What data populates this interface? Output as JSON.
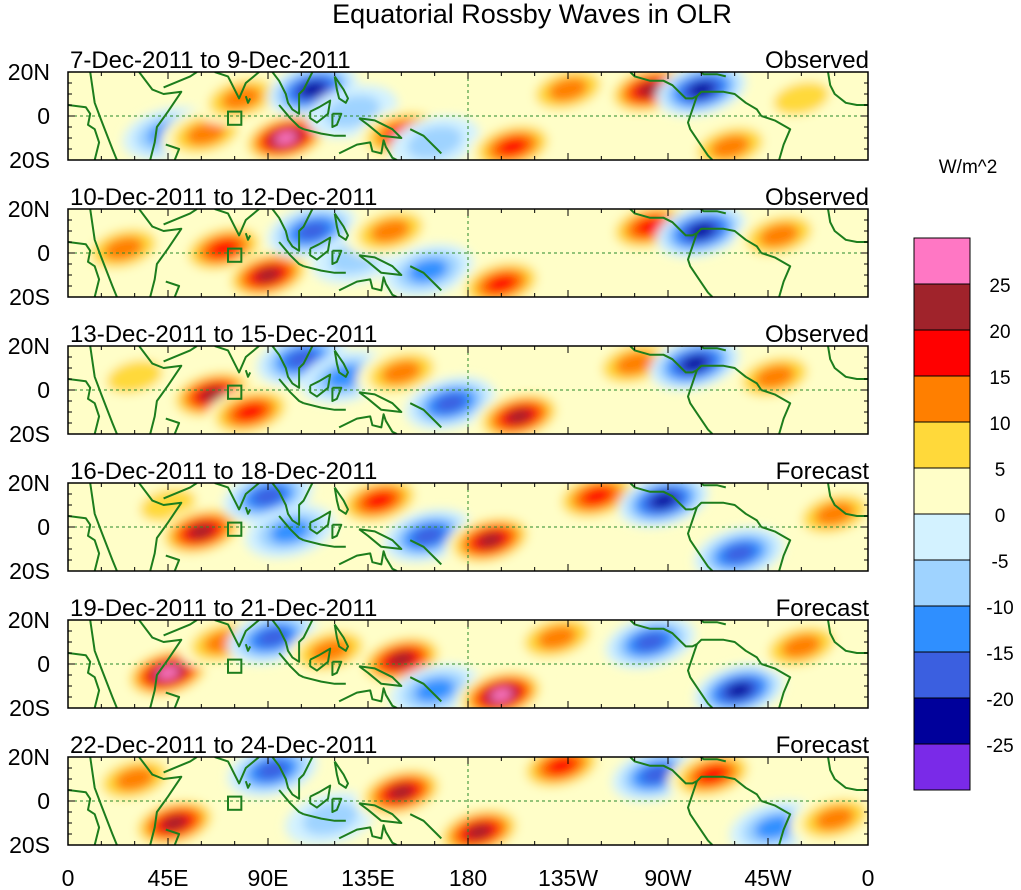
{
  "chart_data": {
    "type": "heatmap",
    "title": "Equatorial Rossby Waves in OLR",
    "units_label": "W/m^2",
    "colorbar": {
      "levels": [
        "25",
        "20",
        "15",
        "10",
        "5",
        "0",
        "-5",
        "-10",
        "-15",
        "-20",
        "-25"
      ],
      "colors": [
        "#ff77c4",
        "#a0232b",
        "#ff0000",
        "#ff7f00",
        "#ffd93a",
        "#fffec8",
        "#d3f2ff",
        "#9fd3ff",
        "#2f8fff",
        "#3b5fe0",
        "#00009b",
        "#7a2ae8"
      ]
    },
    "x_tick_labels": [
      "0",
      "45E",
      "90E",
      "135E",
      "180",
      "135W",
      "90W",
      "45W",
      "0"
    ],
    "x_ticks_deg": [
      0,
      45,
      90,
      135,
      180,
      225,
      270,
      315,
      360
    ],
    "y_tick_labels": [
      "20N",
      "0",
      "20S"
    ],
    "y_ticks_deg": [
      20,
      0,
      -20
    ],
    "panels": [
      {
        "period": "7-Dec-2011 to 9-Dec-2011",
        "status": "Observed",
        "anomalies": [
          {
            "lon": 45,
            "lat": -8,
            "value": -15
          },
          {
            "lon": 62,
            "lat": -8,
            "value": 10
          },
          {
            "lon": 78,
            "lat": 8,
            "value": 10
          },
          {
            "lon": 98,
            "lat": -10,
            "value": 25
          },
          {
            "lon": 110,
            "lat": 12,
            "value": -25
          },
          {
            "lon": 128,
            "lat": 2,
            "value": -10
          },
          {
            "lon": 150,
            "lat": -8,
            "value": 15
          },
          {
            "lon": 165,
            "lat": -12,
            "value": -10
          },
          {
            "lon": 200,
            "lat": -14,
            "value": 15
          },
          {
            "lon": 225,
            "lat": 12,
            "value": 10
          },
          {
            "lon": 262,
            "lat": 12,
            "value": 20
          },
          {
            "lon": 285,
            "lat": 12,
            "value": -25
          },
          {
            "lon": 298,
            "lat": -14,
            "value": 10
          },
          {
            "lon": 330,
            "lat": 8,
            "value": 5
          }
        ]
      },
      {
        "period": "10-Dec-2011 to 12-Dec-2011",
        "status": "Observed",
        "anomalies": [
          {
            "lon": 25,
            "lat": 2,
            "value": 10
          },
          {
            "lon": 70,
            "lat": 2,
            "value": 15
          },
          {
            "lon": 90,
            "lat": -10,
            "value": 20
          },
          {
            "lon": 110,
            "lat": 10,
            "value": -20
          },
          {
            "lon": 130,
            "lat": -2,
            "value": -10
          },
          {
            "lon": 145,
            "lat": 10,
            "value": 10
          },
          {
            "lon": 162,
            "lat": -8,
            "value": -15
          },
          {
            "lon": 195,
            "lat": -14,
            "value": 15
          },
          {
            "lon": 262,
            "lat": 12,
            "value": 15
          },
          {
            "lon": 285,
            "lat": 10,
            "value": -25
          },
          {
            "lon": 320,
            "lat": 8,
            "value": 10
          }
        ]
      },
      {
        "period": "13-Dec-2011 to 15-Dec-2011",
        "status": "Observed",
        "anomalies": [
          {
            "lon": 30,
            "lat": 6,
            "value": 5
          },
          {
            "lon": 65,
            "lat": -2,
            "value": 20
          },
          {
            "lon": 82,
            "lat": -10,
            "value": 15
          },
          {
            "lon": 105,
            "lat": 14,
            "value": -20
          },
          {
            "lon": 125,
            "lat": 6,
            "value": -15
          },
          {
            "lon": 150,
            "lat": 8,
            "value": 10
          },
          {
            "lon": 172,
            "lat": -6,
            "value": -20
          },
          {
            "lon": 203,
            "lat": -12,
            "value": 20
          },
          {
            "lon": 255,
            "lat": 12,
            "value": 10
          },
          {
            "lon": 282,
            "lat": 12,
            "value": -25
          },
          {
            "lon": 318,
            "lat": 6,
            "value": 10
          }
        ]
      },
      {
        "period": "16-Dec-2011 to 18-Dec-2011",
        "status": "Forecast",
        "anomalies": [
          {
            "lon": 45,
            "lat": 10,
            "value": 5
          },
          {
            "lon": 60,
            "lat": -2,
            "value": 20
          },
          {
            "lon": 90,
            "lat": 14,
            "value": -20
          },
          {
            "lon": 100,
            "lat": -2,
            "value": -15
          },
          {
            "lon": 140,
            "lat": 12,
            "value": 15
          },
          {
            "lon": 162,
            "lat": -4,
            "value": -20
          },
          {
            "lon": 190,
            "lat": -6,
            "value": 20
          },
          {
            "lon": 238,
            "lat": 14,
            "value": 15
          },
          {
            "lon": 268,
            "lat": 12,
            "value": -25
          },
          {
            "lon": 302,
            "lat": -12,
            "value": -20
          },
          {
            "lon": 345,
            "lat": 6,
            "value": 10
          }
        ]
      },
      {
        "period": "19-Dec-2011 to 21-Dec-2011",
        "status": "Forecast",
        "anomalies": [
          {
            "lon": 45,
            "lat": -4,
            "value": 25
          },
          {
            "lon": 70,
            "lat": 10,
            "value": 10
          },
          {
            "lon": 92,
            "lat": 12,
            "value": -20
          },
          {
            "lon": 118,
            "lat": 6,
            "value": 10
          },
          {
            "lon": 150,
            "lat": 2,
            "value": 20
          },
          {
            "lon": 165,
            "lat": -12,
            "value": -15
          },
          {
            "lon": 195,
            "lat": -14,
            "value": 25
          },
          {
            "lon": 220,
            "lat": 12,
            "value": 10
          },
          {
            "lon": 262,
            "lat": 10,
            "value": -20
          },
          {
            "lon": 302,
            "lat": -12,
            "value": -25
          },
          {
            "lon": 330,
            "lat": 8,
            "value": 10
          }
        ]
      },
      {
        "period": "22-Dec-2011 to 24-Dec-2011",
        "status": "Forecast",
        "anomalies": [
          {
            "lon": 30,
            "lat": 10,
            "value": 10
          },
          {
            "lon": 48,
            "lat": -10,
            "value": 20
          },
          {
            "lon": 92,
            "lat": 14,
            "value": -20
          },
          {
            "lon": 118,
            "lat": -8,
            "value": -10
          },
          {
            "lon": 150,
            "lat": 4,
            "value": 20
          },
          {
            "lon": 185,
            "lat": -14,
            "value": 20
          },
          {
            "lon": 222,
            "lat": 16,
            "value": 15
          },
          {
            "lon": 265,
            "lat": 12,
            "value": -20
          },
          {
            "lon": 290,
            "lat": 12,
            "value": 15
          },
          {
            "lon": 318,
            "lat": -12,
            "value": -15
          },
          {
            "lon": 345,
            "lat": -8,
            "value": 10
          }
        ]
      }
    ]
  }
}
